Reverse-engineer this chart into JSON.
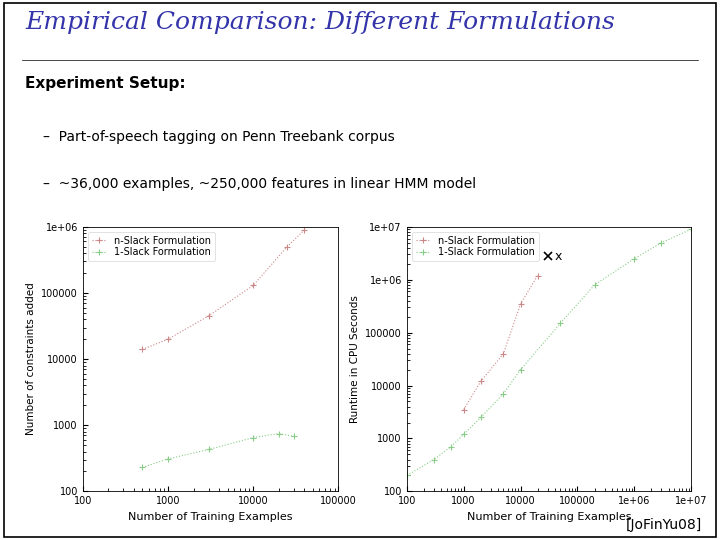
{
  "title": "Empirical Comparison: Different Formulations",
  "title_color": "#3333aa",
  "title_fontsize": 18,
  "setup_header": "Experiment Setup:",
  "bullet1": "Part-of-speech tagging on Penn Treebank corpus",
  "bullet2": "~36,000 examples, ~250,000 features in linear HMM model",
  "citation": "[JoFinYu08]",
  "bg_color": "#f0f0f0",
  "plot1": {
    "ylabel": "Number of constraints added",
    "xlabel": "Number of Training Examples",
    "xlim": [
      100,
      100000
    ],
    "ylim": [
      100,
      1000000
    ],
    "yticks": [
      100,
      1000,
      10000,
      100000
    ],
    "ytick_labels": [
      "100",
      "1000",
      "10000",
      "100000"
    ],
    "ytop_label": "1e+06",
    "legend_labels": [
      "n-Slack Formulation",
      "1-Slack Formulation"
    ],
    "nslack_x": [
      500,
      1000,
      3000,
      10000,
      25000,
      40000
    ],
    "nslack_y": [
      14000,
      20000,
      45000,
      130000,
      500000,
      900000
    ],
    "oneslack_x": [
      500,
      1000,
      3000,
      10000,
      20000,
      30000
    ],
    "oneslack_y": [
      230,
      310,
      430,
      650,
      750,
      680
    ],
    "nslack_color": "#cc8888",
    "oneslack_color": "#88cc88"
  },
  "plot2": {
    "ylabel": "Runtime in CPU Seconds",
    "xlabel": "Number of Training Examples",
    "xlim": [
      100,
      10000000
    ],
    "ylim": [
      100,
      10000000
    ],
    "yticks": [
      100,
      1000,
      10000,
      100000
    ],
    "ytick_labels": [
      "100",
      "1000",
      "10000",
      "100000"
    ],
    "ytop_label": "1e+07",
    "legend_labels": [
      "n-Slack Formulation",
      "1-Slack Formulation"
    ],
    "nslack_x": [
      1000,
      2000,
      5000,
      10000,
      20000
    ],
    "nslack_y": [
      3500,
      12000,
      40000,
      350000,
      1200000
    ],
    "oneslack_x": [
      100,
      300,
      600,
      1000,
      2000,
      5000,
      10000,
      50000,
      200000,
      1000000,
      3000000,
      10000000
    ],
    "oneslack_y": [
      200,
      400,
      700,
      1200,
      2500,
      7000,
      20000,
      150000,
      800000,
      2500000,
      5000000,
      9000000
    ],
    "x_marker_x": 30000,
    "x_marker_y": 2800000,
    "nslack_color": "#cc8888",
    "oneslack_color": "#88cc88"
  }
}
